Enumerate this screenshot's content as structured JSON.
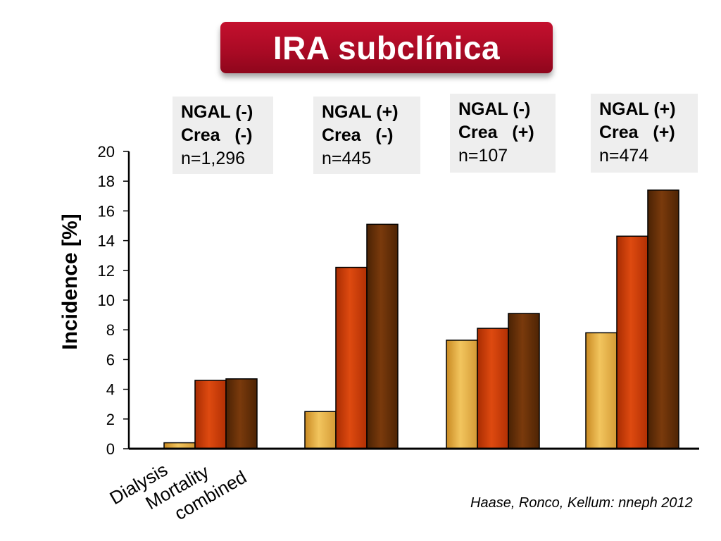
{
  "title": "IRA subclínica",
  "source": "Haase, Ronco, Kellum: nneph 2012",
  "group_labels": [
    {
      "line1": "NGAL (-)",
      "line2": "Crea   (-)",
      "line3": "n=1,296"
    },
    {
      "line1": "NGAL (+)",
      "line2": "Crea   (-)",
      "line3": "n=445"
    },
    {
      "line1": "NGAL (-)",
      "line2": "Crea   (+)",
      "line3": "n=107"
    },
    {
      "line1": "NGAL (+)",
      "line2": "Crea   (+)",
      "line3": "n=474"
    }
  ],
  "chart_data": {
    "type": "bar",
    "ylabel": "Incidence [%]",
    "ylim": [
      0,
      20
    ],
    "yticks": [
      0,
      2,
      4,
      6,
      8,
      10,
      12,
      14,
      16,
      18,
      20
    ],
    "categories": [
      "NGAL (-) Crea (-)",
      "NGAL (+) Crea (-)",
      "NGAL (-) Crea (+)",
      "NGAL (+) Crea (+)"
    ],
    "series": [
      {
        "name": "Dialysis",
        "color": "#e0a640",
        "values": [
          0.4,
          2.5,
          7.3,
          7.8
        ]
      },
      {
        "name": "Mortality",
        "color": "#c23a08",
        "values": [
          4.6,
          12.2,
          8.1,
          14.3
        ]
      },
      {
        "name": "combined",
        "color": "#5e2c06",
        "values": [
          4.7,
          15.1,
          9.1,
          17.4
        ]
      }
    ],
    "grid": false
  }
}
